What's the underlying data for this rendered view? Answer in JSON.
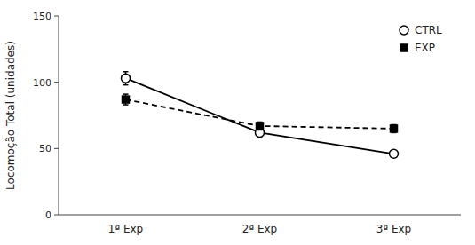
{
  "chart_data": {
    "type": "line",
    "categories": [
      "1ª Exp",
      "2ª Exp",
      "3ª Exp"
    ],
    "ylabel": "Locomoção Total (unidades)",
    "series": [
      {
        "name": "CTRL",
        "color": "#000000",
        "marker": "circle",
        "line_style": "solid",
        "values": [
          103,
          62,
          46
        ],
        "errors": [
          5,
          3,
          2.5
        ]
      },
      {
        "name": "EXP",
        "color": "#000000",
        "marker": "square",
        "line_style": "dashed",
        "values": [
          87,
          67,
          65
        ],
        "errors": [
          4,
          3,
          3
        ]
      }
    ],
    "ylim": [
      0,
      150
    ],
    "yticks": [
      0,
      50,
      100,
      150
    ],
    "grid": false,
    "legend": "upper right"
  }
}
